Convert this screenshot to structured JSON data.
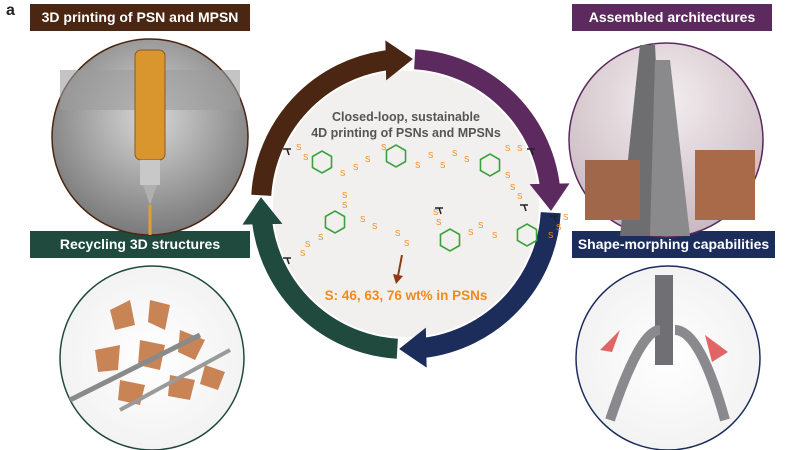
{
  "panel_label": "a",
  "banners": {
    "top_left": {
      "label": "3D printing of PSN and MPSN",
      "color": "#4b2612"
    },
    "top_right": {
      "label": "Assembled architectures",
      "color": "#5c2a5e"
    },
    "bottom_left": {
      "label": "Recycling 3D structures",
      "color": "#1f4a3d"
    },
    "bottom_right": {
      "label": "Shape-morphing capabilities",
      "color": "#1c2d5c"
    }
  },
  "center": {
    "title_line1": "Closed-loop, sustainable",
    "title_line2": "4D printing of PSNs and MPSNs",
    "sulfur_content": "S: 46, 63, 76 wt% in PSNs",
    "sulfur_atom": "S",
    "sulfur_color": "#f08a1c",
    "ring_color": "#3aa23a"
  },
  "cycle_colors": [
    "#5c2a5e",
    "#1c2d5c",
    "#1f4a3d",
    "#4b2612"
  ]
}
